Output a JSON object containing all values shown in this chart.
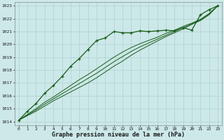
{
  "xlabel": "Graphe pression niveau de la mer (hPa)",
  "background_color": "#cce8e8",
  "grid_color": "#b0d0d0",
  "line_color": "#1a5c1a",
  "xlim": [
    -0.5,
    23.5
  ],
  "ylim": [
    1013.7,
    1023.3
  ],
  "xticks": [
    0,
    1,
    2,
    3,
    4,
    5,
    6,
    7,
    8,
    9,
    10,
    11,
    12,
    13,
    14,
    15,
    16,
    17,
    18,
    19,
    20,
    21,
    22,
    23
  ],
  "yticks": [
    1014,
    1015,
    1016,
    1017,
    1018,
    1019,
    1020,
    1021,
    1022,
    1023
  ],
  "series": [
    {
      "x": [
        0,
        1,
        2,
        3,
        4,
        5,
        6,
        7,
        8,
        9,
        10,
        11,
        12,
        13,
        14,
        15,
        16,
        17,
        18,
        19,
        20,
        21,
        22,
        23
      ],
      "y": [
        1014.1,
        1014.8,
        1015.4,
        1016.2,
        1016.8,
        1017.5,
        1018.3,
        1018.9,
        1019.6,
        1020.3,
        1020.5,
        1021.0,
        1020.9,
        1020.9,
        1021.05,
        1021.0,
        1021.05,
        1021.1,
        1021.05,
        1021.3,
        1021.1,
        1022.3,
        1022.7,
        1023.0
      ],
      "marker": "+",
      "linewidth": 0.9,
      "markersize": 3.5,
      "zorder": 5
    },
    {
      "x": [
        0,
        1,
        2,
        3,
        4,
        5,
        6,
        7,
        8,
        9,
        10,
        11,
        12,
        13,
        14,
        15,
        16,
        17,
        18,
        19,
        20,
        21,
        22,
        23
      ],
      "y": [
        1014.1,
        1014.55,
        1015.0,
        1015.5,
        1015.9,
        1016.35,
        1016.8,
        1017.25,
        1017.65,
        1018.1,
        1018.55,
        1019.0,
        1019.4,
        1019.75,
        1020.05,
        1020.3,
        1020.55,
        1020.85,
        1021.1,
        1021.4,
        1021.65,
        1021.95,
        1022.4,
        1023.0
      ],
      "marker": null,
      "linewidth": 0.7,
      "markersize": 0,
      "zorder": 3
    },
    {
      "x": [
        0,
        1,
        2,
        3,
        4,
        5,
        6,
        7,
        8,
        9,
        10,
        11,
        12,
        13,
        14,
        15,
        16,
        17,
        18,
        19,
        20,
        21,
        22,
        23
      ],
      "y": [
        1014.1,
        1014.5,
        1014.9,
        1015.35,
        1015.75,
        1016.15,
        1016.55,
        1016.95,
        1017.35,
        1017.75,
        1018.2,
        1018.65,
        1019.05,
        1019.45,
        1019.8,
        1020.1,
        1020.4,
        1020.7,
        1021.0,
        1021.3,
        1021.6,
        1021.9,
        1022.35,
        1023.0
      ],
      "marker": null,
      "linewidth": 0.7,
      "markersize": 0,
      "zorder": 3
    },
    {
      "x": [
        0,
        1,
        2,
        3,
        4,
        5,
        6,
        7,
        8,
        9,
        10,
        11,
        12,
        13,
        14,
        15,
        16,
        17,
        18,
        19,
        20,
        21,
        22,
        23
      ],
      "y": [
        1014.1,
        1014.45,
        1014.8,
        1015.2,
        1015.6,
        1015.95,
        1016.3,
        1016.65,
        1017.0,
        1017.4,
        1017.85,
        1018.3,
        1018.7,
        1019.15,
        1019.55,
        1019.9,
        1020.25,
        1020.6,
        1020.9,
        1021.2,
        1021.55,
        1021.85,
        1022.3,
        1023.0
      ],
      "marker": null,
      "linewidth": 0.7,
      "markersize": 0,
      "zorder": 3
    }
  ]
}
